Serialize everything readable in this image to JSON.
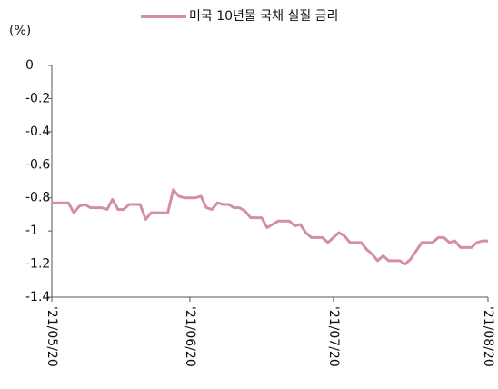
{
  "chart_data": {
    "type": "line",
    "y_label": "(%)",
    "categories": [
      "'21/05/20",
      null,
      null,
      null,
      null,
      null,
      null,
      null,
      null,
      null,
      null,
      null,
      null,
      null,
      null,
      null,
      null,
      null,
      null,
      null,
      null,
      null,
      null,
      null,
      null,
      "'21/06/20",
      null,
      null,
      null,
      null,
      null,
      null,
      null,
      null,
      null,
      null,
      null,
      null,
      null,
      null,
      null,
      null,
      null,
      null,
      null,
      null,
      null,
      null,
      null,
      null,
      null,
      "'21/07/20",
      null,
      null,
      null,
      null,
      null,
      null,
      null,
      null,
      null,
      null,
      null,
      null,
      null,
      null,
      null,
      null,
      null,
      null,
      null,
      null,
      null,
      null,
      null,
      null,
      null,
      null,
      null,
      "'21/08/20"
    ],
    "series": [
      {
        "name": "미국 10년물 국채 실질 금리",
        "color": "#d4909f",
        "values": [
          -0.83,
          -0.83,
          -0.83,
          -0.83,
          -0.89,
          -0.85,
          -0.84,
          -0.86,
          -0.86,
          -0.86,
          -0.87,
          -0.81,
          -0.87,
          -0.87,
          -0.84,
          -0.84,
          -0.84,
          -0.93,
          -0.89,
          -0.89,
          -0.89,
          -0.89,
          -0.75,
          -0.79,
          -0.8,
          -0.8,
          -0.8,
          -0.79,
          -0.86,
          -0.87,
          -0.83,
          -0.84,
          -0.84,
          -0.86,
          -0.86,
          -0.88,
          -0.92,
          -0.92,
          -0.92,
          -0.98,
          -0.96,
          -0.94,
          -0.94,
          -0.94,
          -0.97,
          -0.96,
          -1.01,
          -1.04,
          -1.04,
          -1.04,
          -1.07,
          -1.04,
          -1.01,
          -1.03,
          -1.07,
          -1.07,
          -1.07,
          -1.11,
          -1.14,
          -1.18,
          -1.15,
          -1.18,
          -1.18,
          -1.18,
          -1.2,
          -1.17,
          -1.12,
          -1.07,
          -1.07,
          -1.07,
          -1.04,
          -1.04,
          -1.07,
          -1.06,
          -1.1,
          -1.1,
          -1.1,
          -1.07,
          -1.06,
          -1.06
        ]
      }
    ],
    "ylim": [
      -1.4,
      0
    ],
    "yticks": [
      0,
      -0.2,
      -0.4,
      -0.6,
      -0.8,
      -1,
      -1.2,
      -1.4
    ],
    "legend": "top"
  }
}
